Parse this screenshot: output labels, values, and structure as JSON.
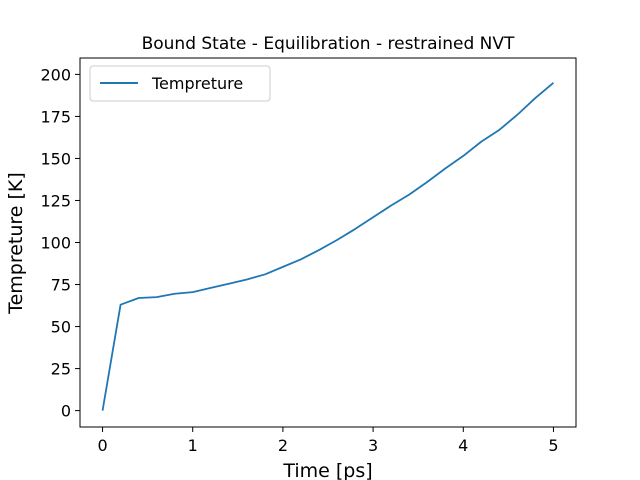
{
  "chart_data": {
    "type": "line",
    "title": "Bound State - Equilibration - restrained NVT",
    "xlabel": "Time [ps]",
    "ylabel": "Tempreture [K]",
    "xlim": [
      -0.25,
      5.25
    ],
    "ylim": [
      -9.75,
      209.75
    ],
    "xticks": [
      0,
      1,
      2,
      3,
      4,
      5
    ],
    "yticks": [
      0,
      25,
      50,
      75,
      100,
      125,
      150,
      175,
      200
    ],
    "legend_position": "upper-left",
    "grid": false,
    "series": [
      {
        "name": "Tempreture",
        "color": "#1f77b4",
        "x": [
          0,
          0.2,
          0.4,
          0.6,
          0.8,
          1.0,
          1.2,
          1.4,
          1.6,
          1.8,
          2.0,
          2.2,
          2.4,
          2.6,
          2.8,
          3.0,
          3.2,
          3.4,
          3.6,
          3.8,
          4.0,
          4.2,
          4.4,
          4.6,
          4.8,
          5.0
        ],
        "y": [
          0,
          63,
          67,
          67.5,
          69.5,
          70.5,
          73,
          75.5,
          78,
          81,
          85.5,
          90,
          95.5,
          101.5,
          108,
          115,
          122,
          128.5,
          136,
          144,
          151.5,
          160,
          167,
          176,
          186,
          195
        ]
      }
    ]
  }
}
